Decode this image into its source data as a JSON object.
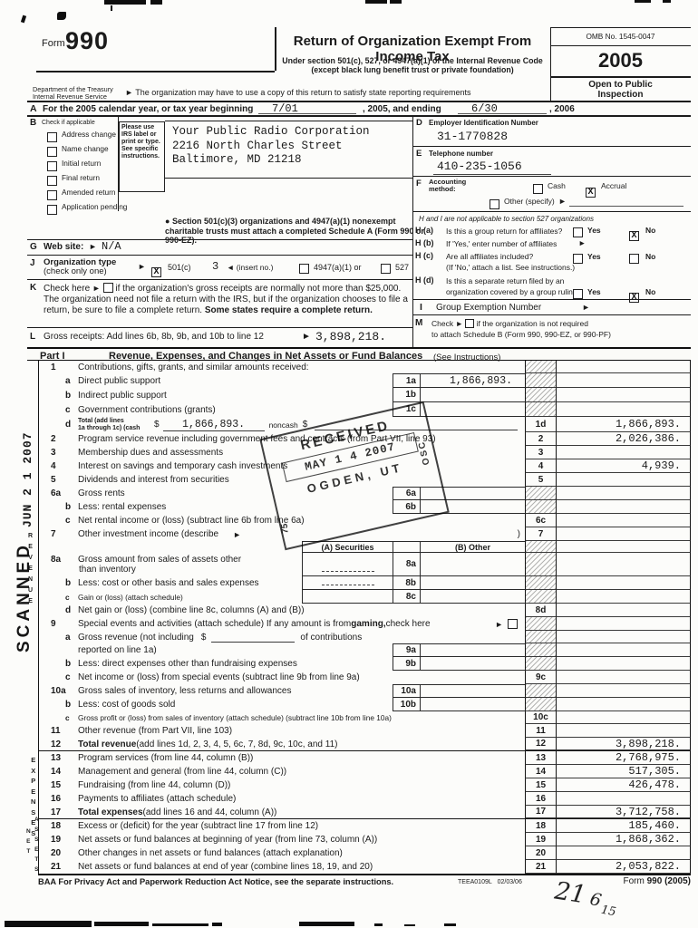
{
  "header": {
    "form_word": "Form",
    "form_number": "990",
    "title": "Return of Organization Exempt From Income Tax",
    "subtitle_line1": "Under section 501(c), 527, or 4947(a)(1) of the Internal Revenue Code",
    "subtitle_line2": "(except black lung benefit trust or private foundation)",
    "arrow": "►",
    "state_note": "The organization may have to use a copy of this return to satisfy state reporting requirements",
    "dept_line1": "Department of the Treasury",
    "dept_line2": "Internal Revenue Service",
    "omb": "OMB No. 1545-0047",
    "year": "2005",
    "open_line1": "Open to Public",
    "open_line2": "Inspection"
  },
  "line_a": {
    "letter": "A",
    "text_begin": "For the 2005 calendar year, or tax year beginning",
    "begin_value": "7/01",
    "text_mid": ", 2005, and ending",
    "end_value": "6/30",
    "text_end": ", 2006"
  },
  "section_b": {
    "letter": "B",
    "heading": "Check if applicable",
    "items": [
      "Address change",
      "Name change",
      "Initial return",
      "Final return",
      "Amended return",
      "Application pending"
    ]
  },
  "label_box": {
    "text": "Please use IRS label or print or type. See specific instructions."
  },
  "org": {
    "name": "Your Public Radio Corporation",
    "street": "2216 North Charles Street",
    "city": "Baltimore, MD 21218"
  },
  "section_d": {
    "letter": "D",
    "label": "Employer Identification Number",
    "value": "31-1770828"
  },
  "section_e": {
    "letter": "E",
    "label": "Telephone number",
    "value": "410-235-1056"
  },
  "section_f": {
    "letter": "F",
    "label_line1": "Accounting",
    "label_line2": "method:",
    "cash_label": "Cash",
    "cash_mark": "",
    "accrual_label": "Accrual",
    "accrual_mark": "X",
    "other_label": "Other (specify)",
    "other_mark": "",
    "arrow": "►"
  },
  "schedule_note": {
    "bullet": "●",
    "text": "Section 501(c)(3) organizations and 4947(a)(1) nonexempt charitable trusts must attach a completed Schedule A (Form 990 or 990-EZ)."
  },
  "section_g": {
    "letter": "G",
    "label": "Web site:",
    "arrow": "►",
    "value": "N/A"
  },
  "section_j": {
    "letter": "J",
    "label_line1": "Organization type",
    "label_line2": "(check only one)",
    "arrow": "►",
    "c501_mark": "X",
    "c501_label": "501(c)",
    "insert_value": "3",
    "insert_label": "◄ (insert no.)",
    "l4947_label": "4947(a)(1) or",
    "l4947_mark": "",
    "l527_label": "527",
    "l527_mark": ""
  },
  "section_k": {
    "letter": "K",
    "check_here": "Check here",
    "arrow": "►",
    "check_mark": "",
    "text": "if the organization's gross receipts are normally not more than $25,000. The organization need not file a return with the IRS, but if the organization chooses to file a return, be sure to file a complete return.",
    "bold_text": "Some states require a complete return."
  },
  "section_l": {
    "letter": "L",
    "label": "Gross receipts: Add lines 6b, 8b, 9b, and 10b to line 12",
    "arrow": "►",
    "value": "3,898,218."
  },
  "section_h": {
    "note": "H and I are not applicable to section 527 organizations",
    "a_label": "H (a)",
    "a_text": "Is this a group return for affiliates?",
    "a_yes": "Yes",
    "a_yes_mark": "",
    "a_no": "No",
    "a_no_mark": "X",
    "b_label": "H (b)",
    "b_text": "If 'Yes,' enter number of affiliates",
    "b_arrow": "►",
    "c_label": "H (c)",
    "c_text": "Are all affiliates included?",
    "c_yes": "Yes",
    "c_yes_mark": "",
    "c_no": "No",
    "c_no_mark": "",
    "c_sub": "(If 'No,' attach a list. See instructions.)",
    "d_label": "H (d)",
    "d_text1": "Is this a separate return filed by an",
    "d_text2": "organization covered by a group ruling?",
    "d_yes": "Yes",
    "d_yes_mark": "",
    "d_no": "No",
    "d_no_mark": "X"
  },
  "section_i": {
    "letter": "I",
    "label": "Group Exemption Number",
    "arrow": "►"
  },
  "section_m": {
    "letter": "M",
    "text1": "Check",
    "arrow": "►",
    "check_mark": "",
    "text2": "if the organization is not required",
    "text3": "to attach Schedule B (Form 990, 990-EZ, or 990-PF)"
  },
  "part1": {
    "label": "Part I",
    "title": "Revenue, Expenses, and Changes in Net Assets or Fund Balances",
    "subtitle": "(See Instructions)",
    "col_a": "(A) Securities",
    "col_b": "(B) Other",
    "line1d": {
      "small1": "Total (add lines",
      "small2": "1a through 1c) (cash",
      "dollar": "$",
      "cash_value": "1,866,893.",
      "noncash": "noncash",
      "dollar2": "$"
    },
    "line7": {
      "arrow": "►",
      "paren": ")"
    },
    "line9": {
      "arrow": "►",
      "check_mark": ""
    },
    "line9a": {
      "pre": "Gross revenue (not including",
      "dollar": "$",
      "post": "of contributions"
    },
    "rows": [
      {
        "num": "1",
        "segs": [
          {
            "t": "Contributions, gifts, grants, and similar amounts received:"
          }
        ],
        "hatch": true,
        "h": 14
      },
      {
        "num": "a",
        "ind": 1,
        "segs": [
          {
            "t": "Direct public support"
          }
        ],
        "mid": {
          "tag": "1a",
          "val": "1,866,893.",
          "top": true
        },
        "hatch": true,
        "h": 16
      },
      {
        "num": "b",
        "ind": 1,
        "segs": [
          {
            "t": "Indirect public support"
          }
        ],
        "mid": {
          "tag": "1b",
          "val": ""
        },
        "hatch": true,
        "h": 16
      },
      {
        "num": "c",
        "ind": 1,
        "segs": [
          {
            "t": "Government contributions (grants)"
          }
        ],
        "mid": {
          "tag": "1c",
          "val": ""
        },
        "hatch": true,
        "h": 16
      },
      {
        "num": "d",
        "ind": 1,
        "type": "1d",
        "rn": "1d",
        "rv": "1,866,893.",
        "h": 17
      },
      {
        "num": "2",
        "segs": [
          {
            "t": "Program service revenue including government fees and contracts (from Part VII, line 93)"
          }
        ],
        "rn": "2",
        "rv": "2,026,386.",
        "h": 15
      },
      {
        "num": "3",
        "segs": [
          {
            "t": "Membership dues and assessments"
          }
        ],
        "rn": "3",
        "rv": "",
        "h": 15
      },
      {
        "num": "4",
        "segs": [
          {
            "t": "Interest on savings and temporary cash investments"
          }
        ],
        "rn": "4",
        "rv": "4,939.",
        "h": 15
      },
      {
        "num": "5",
        "segs": [
          {
            "t": "Dividends and interest from securities"
          }
        ],
        "rn": "5",
        "rv": "",
        "h": 15
      },
      {
        "num": "6a",
        "segs": [
          {
            "t": "Gross rents"
          }
        ],
        "mid": {
          "tag": "6a",
          "val": "",
          "top": true
        },
        "hatch": true,
        "h": 15
      },
      {
        "num": "b",
        "ind": 1,
        "segs": [
          {
            "t": "Less: rental expenses"
          }
        ],
        "mid": {
          "tag": "6b",
          "val": ""
        },
        "hatch": true,
        "h": 15
      },
      {
        "num": "c",
        "ind": 1,
        "segs": [
          {
            "t": "Net rental income or (loss) (subtract line 6b from line 6a)"
          }
        ],
        "rn": "6c",
        "rv": "",
        "h": 15
      },
      {
        "num": "7",
        "type": "7",
        "segs": [
          {
            "t": "Other investment income (describe"
          }
        ],
        "rn": "7",
        "rv": "",
        "h": 15
      },
      {
        "type": "colhead",
        "hatch": true,
        "h": 13
      },
      {
        "num": "8a",
        "segs": [
          {
            "t": "Gross amount from sales of assets other"
          },
          {
            "t": "than inventory",
            "br": true
          }
        ],
        "mid8": {
          "tag": "8a",
          "a": "",
          "b": ""
        },
        "hatch": true,
        "dashA": true,
        "h": 26
      },
      {
        "num": "b",
        "ind": 1,
        "segs": [
          {
            "t": "Less: cost or other basis and sales expenses"
          }
        ],
        "mid8": {
          "tag": "8b",
          "a": "",
          "b": ""
        },
        "hatch": true,
        "dashA": true,
        "h": 15
      },
      {
        "num": "c",
        "ind": 1,
        "segs": [
          {
            "t": "Gain or (loss) (attach schedule)"
          }
        ],
        "mid8": {
          "tag": "8c",
          "a": "",
          "b": ""
        },
        "hatch": true,
        "small": true,
        "h": 15
      },
      {
        "num": "d",
        "ind": 1,
        "segs": [
          {
            "t": "Net gain or (loss) (combine line 8c, columns (A) and (B))"
          }
        ],
        "rn": "8d",
        "rv": "",
        "h": 15
      },
      {
        "num": "9",
        "type": "9",
        "segs": [
          {
            "t": "Special events and activities (attach schedule)  If any amount is from "
          },
          {
            "t": "gaming,",
            "b": true
          },
          {
            "t": " check here"
          }
        ],
        "hatch": true,
        "h": 15
      },
      {
        "num": "a",
        "ind": 1,
        "type": "9a1",
        "hatch": true,
        "h": 14
      },
      {
        "num": "",
        "ind": 2,
        "segs": [
          {
            "t": "reported on line 1a)"
          }
        ],
        "mid": {
          "tag": "9a",
          "val": "",
          "top": true
        },
        "hatch": true,
        "h": 15
      },
      {
        "num": "b",
        "ind": 1,
        "segs": [
          {
            "t": "Less: direct expenses other than fundraising expenses"
          }
        ],
        "mid": {
          "tag": "9b",
          "val": ""
        },
        "hatch": true,
        "h": 15
      },
      {
        "num": "c",
        "ind": 1,
        "segs": [
          {
            "t": "Net income or (loss) from special events (subtract line 9b from line 9a)"
          }
        ],
        "rn": "9c",
        "rv": "",
        "h": 15
      },
      {
        "num": "10a",
        "segs": [
          {
            "t": "Gross sales of inventory, less returns and allowances"
          }
        ],
        "mid": {
          "tag": "10a",
          "val": "",
          "top": true
        },
        "hatch": true,
        "h": 15
      },
      {
        "num": "b",
        "ind": 1,
        "segs": [
          {
            "t": "Less: cost of goods sold"
          }
        ],
        "mid": {
          "tag": "10b",
          "val": ""
        },
        "hatch": true,
        "h": 15
      },
      {
        "num": "c",
        "ind": 1,
        "segs": [
          {
            "t": "Gross profit or (loss) from sales of inventory (attach schedule) (subtract line 10b from line 10a)"
          }
        ],
        "rn": "10c",
        "rv": "",
        "small": true,
        "h": 14
      },
      {
        "num": "11",
        "segs": [
          {
            "t": "Other revenue (from Part VII, line 103)"
          }
        ],
        "rn": "11",
        "rv": "",
        "h": 15
      },
      {
        "num": "12",
        "segs": [
          {
            "t": "Total revenue ",
            "b": true
          },
          {
            "t": "(add lines 1d, 2, 3, 4, 5, 6c, 7, 8d, 9c, 10c, and 11)"
          }
        ],
        "rn": "12",
        "rv": "3,898,218.",
        "rule": true,
        "h": 15
      },
      {
        "num": "13",
        "segs": [
          {
            "t": "Program services (from line 44, column (B))"
          }
        ],
        "rn": "13",
        "rv": "2,768,975.",
        "h": 15
      },
      {
        "num": "14",
        "segs": [
          {
            "t": "Management and general (from line 44, column (C))"
          }
        ],
        "rn": "14",
        "rv": "517,305.",
        "h": 15
      },
      {
        "num": "15",
        "segs": [
          {
            "t": "Fundraising (from line 44, column (D))"
          }
        ],
        "rn": "15",
        "rv": "426,478.",
        "h": 15
      },
      {
        "num": "16",
        "segs": [
          {
            "t": "Payments to affiliates (attach schedule)"
          }
        ],
        "rn": "16",
        "rv": "",
        "h": 15
      },
      {
        "num": "17",
        "segs": [
          {
            "t": "Total expenses ",
            "b": true
          },
          {
            "t": "(add lines 16 and 44, column (A))"
          }
        ],
        "rn": "17",
        "rv": "3,712,758.",
        "rule": true,
        "h": 15
      },
      {
        "num": "18",
        "segs": [
          {
            "t": "Excess or (deficit) for the year (subtract line 17 from line 12)"
          }
        ],
        "rn": "18",
        "rv": "185,460.",
        "h": 15
      },
      {
        "num": "19",
        "segs": [
          {
            "t": "Net assets or fund balances at beginning of year (from line 73, column (A))"
          }
        ],
        "rn": "19",
        "rv": "1,868,362.",
        "h": 15
      },
      {
        "num": "20",
        "segs": [
          {
            "t": "Other changes in net assets or fund balances (attach explanation)"
          }
        ],
        "rn": "20",
        "rv": "",
        "h": 15
      },
      {
        "num": "21",
        "segs": [
          {
            "t": "Net assets or fund balances at end of year (combine lines 18, 19, and 20)"
          }
        ],
        "rn": "21",
        "rv": "2,053,822.",
        "h": 15
      }
    ]
  },
  "side_labels": {
    "revenue": "REVENUE",
    "expenses": "EXPENSES",
    "net": "NET",
    "assets": "ASSETS"
  },
  "footer": {
    "baa": "BAA",
    "notice": "For Privacy Act and Paperwork Reduction Act Notice, see the separate instructions.",
    "code": "TEEA0109L",
    "code_date": "02/03/06",
    "form_word": "Form",
    "form_number": "990 (2005)"
  },
  "stamps": {
    "received": {
      "line1": "RECEIVED",
      "date": "MAY 1 4 2007",
      "line3": "OGDEN, UT",
      "side_right": "OSC",
      "side_left": "75"
    },
    "scanned": {
      "word": "SCANNED",
      "date": "JUN 2 1 2007"
    },
    "handwriting": {
      "a": "21",
      "b": "6",
      "c": "15"
    }
  }
}
